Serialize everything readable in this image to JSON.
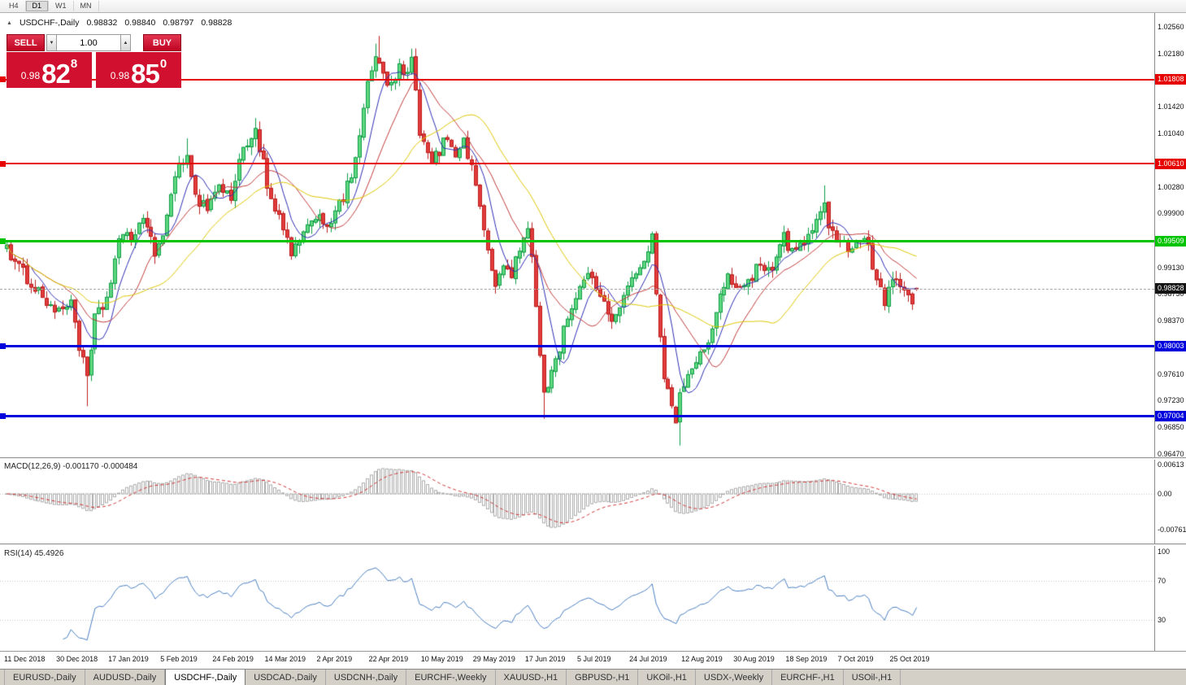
{
  "toolbar": {
    "timeframes": [
      "H4",
      "D1",
      "W1",
      "MN"
    ],
    "active": "D1"
  },
  "symbol_header": {
    "icon": "▲",
    "symbol": "USDCHF-,Daily",
    "open": "0.98832",
    "high": "0.98840",
    "low": "0.98797",
    "close": "0.98828"
  },
  "trade_widget": {
    "sell_label": "SELL",
    "buy_label": "BUY",
    "volume": "1.00",
    "volume_down_icon": "▼",
    "volume_up_icon": "▲",
    "sell_price": {
      "prefix": "0.98",
      "big": "82",
      "sup": "8"
    },
    "buy_price": {
      "prefix": "0.98",
      "big": "85",
      "sup": "0"
    },
    "accent_red": "#d10f2e"
  },
  "price_axis": {
    "labels": [
      "1.02560",
      "1.02180",
      "1.01420",
      "1.01040",
      "1.00280",
      "0.99900",
      "0.99130",
      "0.98750",
      "0.98370",
      "0.97610",
      "0.97230",
      "0.96850",
      "0.96470"
    ]
  },
  "levels": [
    {
      "label": "1.01808",
      "price": 1.01808,
      "color": "#e60000",
      "thickness": 2
    },
    {
      "label": "1.00610",
      "price": 1.0061,
      "color": "#e60000",
      "thickness": 2
    },
    {
      "label": "0.99509",
      "price": 0.99509,
      "color": "#00c400",
      "thickness": 3
    },
    {
      "label": "0.98003",
      "price": 0.98003,
      "color": "#0000dd",
      "thickness": 3
    },
    {
      "label": "0.97004",
      "price": 0.97004,
      "color": "#0000dd",
      "thickness": 3
    }
  ],
  "current_price": {
    "label": "0.98828",
    "value": 0.98828,
    "tag_color": "#141414"
  },
  "macd_panel": {
    "name": "MACD(12,26,9)",
    "values": "-0.001170 -0.000484",
    "axis": [
      {
        "label": "0.00613",
        "value": 0.00613
      },
      {
        "label": "0.00",
        "value": 0
      },
      {
        "label": "-0.00761",
        "value": -0.00761
      }
    ]
  },
  "rsi_panel": {
    "name": "RSI(14)",
    "value": "45.4926",
    "axis": [
      {
        "label": "100",
        "value": 100
      },
      {
        "label": "70",
        "value": 70
      },
      {
        "label": "30",
        "value": 30
      }
    ]
  },
  "date_axis": [
    "11 Dec 2018",
    "30 Dec 2018",
    "17 Jan 2019",
    "5 Feb 2019",
    "24 Feb 2019",
    "14 Mar 2019",
    "2 Apr 2019",
    "22 Apr 2019",
    "10 May 2019",
    "29 May 2019",
    "17 Jun 2019",
    "5 Jul 2019",
    "24 Jul 2019",
    "12 Aug 2019",
    "30 Aug 2019",
    "18 Sep 2019",
    "7 Oct 2019",
    "25 Oct 2019"
  ],
  "bottom_tabs": {
    "active": "USDCHF-,Daily",
    "tabs": [
      "EURUSD-,Daily",
      "AUDUSD-,Daily",
      "USDCHF-,Daily",
      "USDCAD-,Daily",
      "USDCNH-,Daily",
      "EURCHF-,Weekly",
      "XAUUSD-,H1",
      "GBPUSD-,H1",
      "UKOil-,H1",
      "USDX-,Weekly",
      "EURCHF-,H1",
      "USOil-,H1"
    ]
  },
  "chart_data": {
    "type": "candlestick",
    "symbol": "USDCHF",
    "timeframe": "Daily",
    "candle_count": 228,
    "bars_per_date_label": 13,
    "y_axis": {
      "top": 1.0256,
      "bottom": 0.9647,
      "step": 0.0038
    },
    "last_candle": {
      "open": 0.98832,
      "high": 0.9884,
      "low": 0.98797,
      "close": 0.98828
    },
    "price_path": [
      [
        0,
        0.9945
      ],
      [
        2,
        0.9918
      ],
      [
        5,
        0.9898
      ],
      [
        9,
        0.9872
      ],
      [
        13,
        0.9846
      ],
      [
        16,
        0.9868
      ],
      [
        18,
        0.9802
      ],
      [
        20,
        0.9752
      ],
      [
        22,
        0.9838
      ],
      [
        25,
        0.9868
      ],
      [
        28,
        0.9952
      ],
      [
        31,
        0.9955
      ],
      [
        34,
        0.9986
      ],
      [
        37,
        0.993
      ],
      [
        40,
        0.9985
      ],
      [
        43,
        1.0058
      ],
      [
        45,
        1.008
      ],
      [
        47,
        1.0012
      ],
      [
        50,
        1.0
      ],
      [
        53,
        1.003
      ],
      [
        56,
        1.0012
      ],
      [
        59,
        1.0085
      ],
      [
        62,
        1.0108
      ],
      [
        64,
        1.006
      ],
      [
        65,
        1.0022
      ],
      [
        68,
        0.998
      ],
      [
        71,
        0.9935
      ],
      [
        74,
        0.9955
      ],
      [
        77,
        0.999
      ],
      [
        80,
        0.9975
      ],
      [
        82,
        0.999
      ],
      [
        84,
        1.001
      ],
      [
        86,
        1.0045
      ],
      [
        88,
        1.0105
      ],
      [
        90,
        1.017
      ],
      [
        92,
        1.0215
      ],
      [
        94,
        1.0185
      ],
      [
        96,
        1.017
      ],
      [
        98,
        1.0195
      ],
      [
        100,
        1.0185
      ],
      [
        101,
        1.021
      ],
      [
        103,
        1.011
      ],
      [
        104,
        1.0085
      ],
      [
        106,
        1.0062
      ],
      [
        108,
        1.008
      ],
      [
        110,
        1.01
      ],
      [
        112,
        1.0078
      ],
      [
        114,
        1.0092
      ],
      [
        116,
        1.0055
      ],
      [
        118,
        1.0008
      ],
      [
        120,
        0.993
      ],
      [
        122,
        0.9888
      ],
      [
        124,
        0.9915
      ],
      [
        126,
        0.9905
      ],
      [
        128,
        0.9938
      ],
      [
        130,
        0.9968
      ],
      [
        131,
        0.992
      ],
      [
        132,
        0.986
      ],
      [
        133,
        0.979
      ],
      [
        134,
        0.9735
      ],
      [
        136,
        0.9762
      ],
      [
        138,
        0.98
      ],
      [
        140,
        0.9845
      ],
      [
        142,
        0.9872
      ],
      [
        144,
        0.989
      ],
      [
        146,
        0.9902
      ],
      [
        148,
        0.9875
      ],
      [
        150,
        0.9848
      ],
      [
        152,
        0.9842
      ],
      [
        154,
        0.9878
      ],
      [
        156,
        0.9895
      ],
      [
        158,
        0.9908
      ],
      [
        160,
        0.9942
      ],
      [
        161,
        0.9952
      ],
      [
        162,
        0.987
      ],
      [
        163,
        0.982
      ],
      [
        164,
        0.9762
      ],
      [
        165,
        0.9742
      ],
      [
        166,
        0.9722
      ],
      [
        167,
        0.97
      ],
      [
        168,
        0.9728
      ],
      [
        170,
        0.9758
      ],
      [
        172,
        0.9775
      ],
      [
        174,
        0.98
      ],
      [
        176,
        0.9822
      ],
      [
        178,
        0.9868
      ],
      [
        180,
        0.9898
      ],
      [
        182,
        0.9888
      ],
      [
        184,
        0.9892
      ],
      [
        186,
        0.9902
      ],
      [
        188,
        0.9918
      ],
      [
        190,
        0.9905
      ],
      [
        192,
        0.9928
      ],
      [
        194,
        0.9958
      ],
      [
        195,
        0.9935
      ],
      [
        197,
        0.9942
      ],
      [
        199,
        0.9952
      ],
      [
        201,
        0.9962
      ],
      [
        203,
        0.9985
      ],
      [
        204,
        1.0002
      ],
      [
        205,
        0.9978
      ],
      [
        207,
        0.9958
      ],
      [
        209,
        0.9945
      ],
      [
        211,
        0.9942
      ],
      [
        213,
        0.9958
      ],
      [
        215,
        0.9938
      ],
      [
        216,
        0.9918
      ],
      [
        218,
        0.9888
      ],
      [
        219,
        0.9862
      ],
      [
        221,
        0.9895
      ],
      [
        223,
        0.989
      ],
      [
        225,
        0.9868
      ],
      [
        226,
        0.9852
      ],
      [
        227,
        0.98828
      ]
    ],
    "extremes": {
      "highs": [
        [
          45,
          1.0097
        ],
        [
          62,
          1.0126
        ],
        [
          92,
          1.0232
        ],
        [
          93,
          1.0243
        ],
        [
          101,
          1.0225
        ],
        [
          204,
          1.003
        ]
      ],
      "lows": [
        [
          20,
          0.9715
        ],
        [
          134,
          0.9697
        ],
        [
          167,
          0.9698
        ],
        [
          168,
          0.9659
        ]
      ]
    },
    "moving_averages": [
      {
        "period": 7,
        "color": "#2d2db4"
      },
      {
        "period": 15,
        "color": "#c03a3a"
      },
      {
        "period": 30,
        "color": "#ddc500"
      }
    ],
    "macd": {
      "fast": 12,
      "slow": 26,
      "signal": 9,
      "hist_color": "#ababab",
      "signal_color": "#cf3434",
      "scale_per_unit": 5800
    },
    "rsi": {
      "period": 14,
      "color": "#4a7fc1",
      "levels": [
        70,
        30
      ],
      "current": 45.4926
    },
    "candle_colors": {
      "up_fill": "#5fd77f",
      "up_border": "#0e9c44",
      "down_fill": "#e23b3b",
      "down_border": "#bb1d1d"
    }
  }
}
